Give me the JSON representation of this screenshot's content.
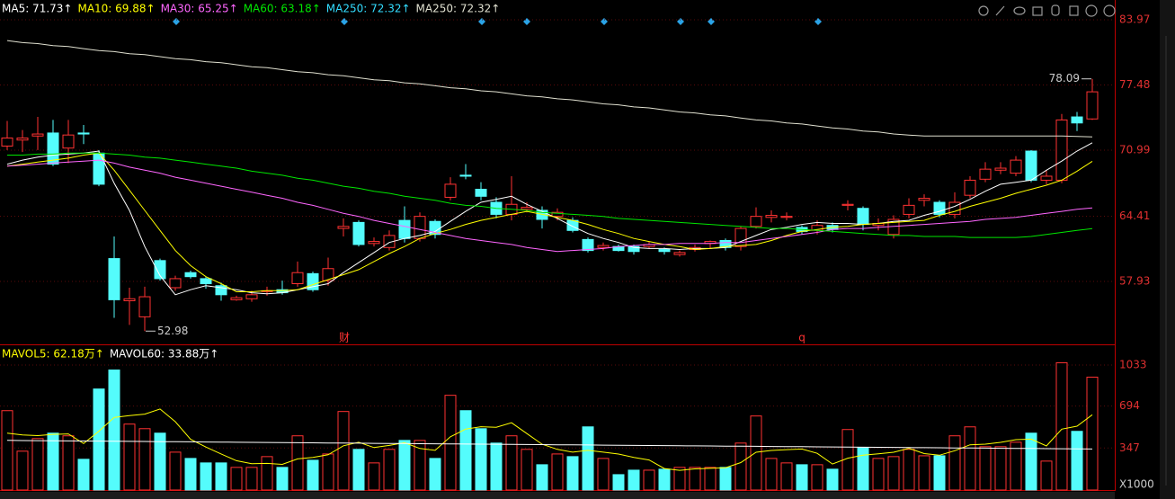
{
  "chart_data": [
    {
      "type": "candlestick",
      "open": [
        71.4,
        72.0,
        72.4,
        72.7,
        71.2,
        72.7,
        70.7,
        60.2,
        56.0,
        54.4,
        60.0,
        57.3,
        58.8,
        58.2,
        57.5,
        56.1,
        56.2,
        57.0,
        57.1,
        57.7,
        58.7,
        58.0,
        63.2,
        63.8,
        61.7,
        61.3,
        64.0,
        62.2,
        63.9,
        66.3,
        68.5,
        67.1,
        65.8,
        64.6,
        65.1,
        65.0,
        64.4,
        64.0,
        62.1,
        61.3,
        61.4,
        61.4,
        61.4,
        61.1,
        60.6,
        61.1,
        61.7,
        62.0,
        61.4,
        63.4,
        64.3,
        64.3,
        63.3,
        63.0,
        63.5,
        65.5,
        65.2,
        63.5,
        62.6,
        64.6,
        66.0,
        65.8,
        64.6,
        66.5,
        68.1,
        69.0,
        68.7,
        70.9,
        68.0,
        68.0,
        74.3,
        74.1
      ],
      "high": [
        73.9,
        73.0,
        74.3,
        74.0,
        74.0,
        73.5,
        71.0,
        62.4,
        57.3,
        57.4,
        60.2,
        58.5,
        59.0,
        58.4,
        57.8,
        56.5,
        57.0,
        57.4,
        58.0,
        59.9,
        58.9,
        60.3,
        64.2,
        64.0,
        62.3,
        63.0,
        65.4,
        64.8,
        64.1,
        68.3,
        69.6,
        67.8,
        66.3,
        68.4,
        65.8,
        65.4,
        65.2,
        64.3,
        62.3,
        61.8,
        61.6,
        61.6,
        61.9,
        61.3,
        61.0,
        61.6,
        62.0,
        62.2,
        63.4,
        65.3,
        65.0,
        64.8,
        63.5,
        64.0,
        63.8,
        66.0,
        65.4,
        64.2,
        64.5,
        66.2,
        66.6,
        66.0,
        66.8,
        68.4,
        69.8,
        69.8,
        70.4,
        71.0,
        69.0,
        74.6,
        74.8,
        78.09
      ],
      "low": [
        71.0,
        70.8,
        71.0,
        69.4,
        69.7,
        71.6,
        67.4,
        54.3,
        53.6,
        52.98,
        58.0,
        57.0,
        58.2,
        57.2,
        56.0,
        56.0,
        55.9,
        56.5,
        56.6,
        57.4,
        56.9,
        57.5,
        62.4,
        61.4,
        61.4,
        61.0,
        61.8,
        61.9,
        62.2,
        66.0,
        68.1,
        66.0,
        64.2,
        64.0,
        64.8,
        63.2,
        64.0,
        62.8,
        60.8,
        61.0,
        60.9,
        60.6,
        61.2,
        60.6,
        60.4,
        60.9,
        61.2,
        61.0,
        61.0,
        63.2,
        63.8,
        64.0,
        62.6,
        62.6,
        62.8,
        65.0,
        63.0,
        63.0,
        62.2,
        64.2,
        65.4,
        64.3,
        64.2,
        66.2,
        67.8,
        68.6,
        68.4,
        67.8,
        67.6,
        67.7,
        72.9,
        74.0
      ],
      "close": [
        72.2,
        72.2,
        72.6,
        69.6,
        72.5,
        72.6,
        67.6,
        56.1,
        56.2,
        56.4,
        58.2,
        58.2,
        58.4,
        57.7,
        56.6,
        56.3,
        56.6,
        57.0,
        56.8,
        58.8,
        57.1,
        59.2,
        63.4,
        61.6,
        61.9,
        62.5,
        62.2,
        64.4,
        62.6,
        67.6,
        68.4,
        66.4,
        64.6,
        65.6,
        65.3,
        64.1,
        64.8,
        63.0,
        61.0,
        61.5,
        61.0,
        60.9,
        61.6,
        60.9,
        60.8,
        61.3,
        61.9,
        61.3,
        63.2,
        64.4,
        64.5,
        64.4,
        62.9,
        63.5,
        63.1,
        65.6,
        63.6,
        63.7,
        64.1,
        65.5,
        66.2,
        64.6,
        65.8,
        68.0,
        69.1,
        69.2,
        70.0,
        68.0,
        68.4,
        74.0,
        73.7,
        76.8
      ],
      "up_color": "#ff3232",
      "down_color": "#54fcfc",
      "series": [
        {
          "name": "MA5: 71.73↑",
          "color": "#ffffff",
          "values": [
            69.6,
            70.0,
            70.3,
            70.5,
            70.6,
            70.7,
            70.9,
            67.7,
            65.0,
            61.4,
            58.5,
            56.6,
            57.1,
            57.5,
            57.3,
            57.1,
            56.8,
            56.7,
            56.8,
            57.1,
            57.4,
            57.7,
            58.8,
            59.8,
            60.8,
            61.8,
            62.2,
            62.5,
            62.9,
            63.9,
            64.9,
            65.8,
            66.1,
            66.4,
            65.6,
            64.9,
            64.2,
            63.4,
            62.7,
            62.2,
            61.8,
            61.3,
            61.2,
            61.2,
            61.1,
            61.2,
            61.2,
            61.3,
            61.9,
            62.5,
            63.1,
            63.3,
            63.6,
            63.8,
            63.7,
            63.7,
            63.6,
            63.7,
            63.9,
            64.0,
            64.5,
            64.9,
            65.4,
            66.1,
            66.9,
            67.6,
            67.8,
            68.0,
            69.0,
            69.9,
            70.9,
            71.73
          ]
        },
        {
          "name": "MA10: 69.88↑",
          "color": "#ffff00",
          "values": [
            69.4,
            69.6,
            69.8,
            70.0,
            70.2,
            70.5,
            70.7,
            69.0,
            67.0,
            65.0,
            63.0,
            61.0,
            59.5,
            58.4,
            57.7,
            56.9,
            56.9,
            57.0,
            57.0,
            57.1,
            57.6,
            58.1,
            58.6,
            59.1,
            59.9,
            60.7,
            61.4,
            62.2,
            62.7,
            63.1,
            63.6,
            64.0,
            64.3,
            64.6,
            64.9,
            64.6,
            64.3,
            64.0,
            63.6,
            63.1,
            62.7,
            62.2,
            61.9,
            61.6,
            61.4,
            61.1,
            61.2,
            61.4,
            61.5,
            61.6,
            62.0,
            62.5,
            62.9,
            63.1,
            63.3,
            63.4,
            63.6,
            63.7,
            63.8,
            63.9,
            64.0,
            64.5,
            64.9,
            65.4,
            65.8,
            66.2,
            66.7,
            67.1,
            67.5,
            68.0,
            68.9,
            69.88
          ]
        },
        {
          "name": "MA30: 65.25↑",
          "color": "#ff66ff",
          "values": [
            69.4,
            69.5,
            69.6,
            69.7,
            69.8,
            69.9,
            70.0,
            69.7,
            69.3,
            69.0,
            68.7,
            68.3,
            68.0,
            67.7,
            67.4,
            67.1,
            66.8,
            66.5,
            66.2,
            65.8,
            65.5,
            65.1,
            64.7,
            64.4,
            64.0,
            63.7,
            63.4,
            63.1,
            62.8,
            62.5,
            62.2,
            62.0,
            61.8,
            61.6,
            61.3,
            61.1,
            60.9,
            61.0,
            61.1,
            61.2,
            61.4,
            61.5,
            61.6,
            61.6,
            61.7,
            61.7,
            61.7,
            61.8,
            61.8,
            62.0,
            62.2,
            62.4,
            62.6,
            62.8,
            63.1,
            63.2,
            63.2,
            63.3,
            63.4,
            63.5,
            63.6,
            63.7,
            63.8,
            63.9,
            64.1,
            64.2,
            64.3,
            64.5,
            64.7,
            64.9,
            65.1,
            65.25
          ]
        },
        {
          "name": "MA60: 63.18↑",
          "color": "#00e600",
          "values": [
            70.5,
            70.5,
            70.6,
            70.6,
            70.7,
            70.7,
            70.7,
            70.6,
            70.5,
            70.3,
            70.2,
            70.0,
            69.8,
            69.6,
            69.4,
            69.2,
            68.9,
            68.7,
            68.5,
            68.2,
            68.0,
            67.7,
            67.4,
            67.2,
            66.9,
            66.7,
            66.4,
            66.2,
            66.0,
            65.7,
            65.5,
            65.4,
            65.2,
            65.1,
            65.0,
            64.8,
            64.7,
            64.6,
            64.5,
            64.4,
            64.2,
            64.1,
            64.0,
            63.9,
            63.8,
            63.7,
            63.6,
            63.5,
            63.4,
            63.3,
            63.2,
            63.2,
            63.1,
            63.0,
            62.9,
            62.8,
            62.7,
            62.6,
            62.5,
            62.5,
            62.4,
            62.4,
            62.4,
            62.3,
            62.3,
            62.3,
            62.3,
            62.4,
            62.6,
            62.8,
            63.0,
            63.18
          ]
        },
        {
          "name": "MA250: 72.32↑",
          "color": "#e0e0d0",
          "values": [
            81.9,
            81.7,
            81.6,
            81.4,
            81.3,
            81.1,
            80.9,
            80.8,
            80.6,
            80.5,
            80.3,
            80.1,
            80.0,
            79.8,
            79.7,
            79.5,
            79.3,
            79.2,
            79.0,
            78.8,
            78.7,
            78.5,
            78.4,
            78.2,
            78.0,
            77.9,
            77.7,
            77.6,
            77.4,
            77.2,
            77.1,
            76.9,
            76.8,
            76.6,
            76.4,
            76.3,
            76.1,
            76.0,
            75.8,
            75.6,
            75.5,
            75.3,
            75.2,
            75.0,
            74.8,
            74.7,
            74.5,
            74.4,
            74.2,
            74.0,
            73.9,
            73.7,
            73.6,
            73.4,
            73.2,
            73.1,
            72.9,
            72.8,
            72.6,
            72.5,
            72.4,
            72.4,
            72.4,
            72.4,
            72.4,
            72.4,
            72.4,
            72.4,
            72.4,
            72.4,
            72.35,
            72.32
          ]
        }
      ],
      "legend_only": [
        {
          "name": "MA250: 72.32↑",
          "color": "#33ddff"
        }
      ],
      "annotations": [
        "财",
        "q"
      ],
      "ylim": [
        51.66,
        85.94
      ],
      "yticks": [
        57.93,
        64.41,
        70.99,
        77.48,
        83.97
      ],
      "grid": true
    },
    {
      "type": "volume",
      "values": [
        656,
        321,
        425,
        470,
        448,
        254,
        835,
        992,
        545,
        507,
        470,
        313,
        261,
        224,
        224,
        187,
        187,
        276,
        187,
        448,
        246,
        298,
        649,
        336,
        224,
        336,
        410,
        410,
        261,
        783,
        656,
        507,
        388,
        448,
        336,
        209,
        298,
        276,
        522,
        261,
        127,
        164,
        164,
        172,
        187,
        187,
        187,
        187,
        388,
        612,
        261,
        224,
        209,
        209,
        172,
        500,
        351,
        261,
        276,
        336,
        283,
        283,
        448,
        522,
        358,
        358,
        395,
        470,
        239,
        1052,
        485,
        933
      ],
      "series": [
        {
          "name": "MAVOL5: 62.18万↑",
          "color": "#ffff00",
          "values": [
            470,
            455,
            450,
            460,
            464,
            384,
            486,
            600,
            615,
            627,
            670,
            565,
            419,
            355,
            298,
            242,
            217,
            220,
            212,
            257,
            269,
            291,
            366,
            395,
            351,
            369,
            391,
            343,
            328,
            440,
            504,
            523,
            519,
            556,
            467,
            378,
            336,
            313,
            328,
            313,
            297,
            270,
            248,
            178,
            163,
            175,
            179,
            184,
            227,
            312,
            327,
            334,
            339,
            303,
            215,
            263,
            288,
            299,
            312,
            345,
            301,
            288,
            325,
            374,
            379,
            394,
            416,
            421,
            364,
            503,
            528,
            621.8
          ]
        },
        {
          "name": "MAVOL60: 33.88万↑",
          "color": "#ffffff",
          "values": [
            410,
            409,
            408,
            407,
            406,
            405,
            404,
            403,
            402,
            401,
            400,
            399,
            398,
            397,
            396,
            395,
            394,
            393,
            392,
            391,
            390,
            389,
            388,
            387,
            386,
            385,
            384,
            383,
            382,
            381,
            380,
            379,
            378,
            377,
            376,
            375,
            374,
            373,
            372,
            371,
            370,
            369,
            368,
            367,
            366,
            365,
            364,
            363,
            362,
            361,
            360,
            359,
            358,
            357,
            356,
            355,
            354,
            353,
            352,
            351,
            350,
            349,
            348,
            347,
            346,
            345,
            344,
            343,
            342,
            341,
            340,
            338.8
          ]
        }
      ],
      "unit_label": "X1000",
      "ylim": [
        0,
        1152
      ],
      "yticks": [
        347,
        694,
        1033
      ]
    }
  ]
}
